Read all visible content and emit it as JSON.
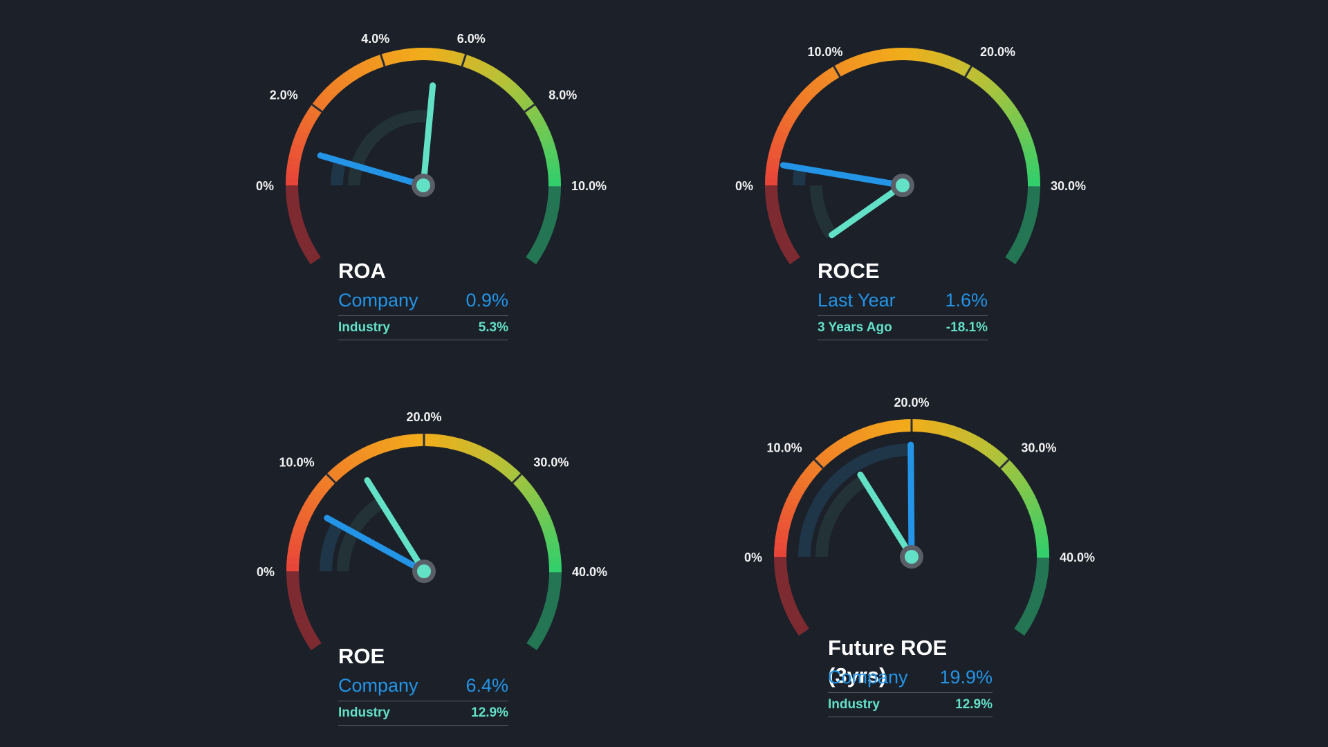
{
  "chart_data": [
    {
      "type": "gauge",
      "title": "ROA",
      "range": [
        0,
        10
      ],
      "ticks": [
        {
          "value": 0,
          "label": "0%"
        },
        {
          "value": 2,
          "label": "2.0%"
        },
        {
          "value": 4,
          "label": "4.0%"
        },
        {
          "value": 6,
          "label": "6.0%"
        },
        {
          "value": 8,
          "label": "8.0%"
        },
        {
          "value": 10,
          "label": "10.0%"
        }
      ],
      "series": [
        {
          "name": "Company",
          "value": 0.9,
          "display": "0.9%",
          "color": "#2394e6"
        },
        {
          "name": "Industry",
          "value": 5.3,
          "display": "5.3%",
          "color": "#63e1c6"
        }
      ]
    },
    {
      "type": "gauge",
      "title": "ROCE",
      "range": [
        0,
        30
      ],
      "ticks": [
        {
          "value": 0,
          "label": "0%"
        },
        {
          "value": 10,
          "label": "10.0%"
        },
        {
          "value": 20,
          "label": "20.0%"
        },
        {
          "value": 30,
          "label": "30.0%"
        }
      ],
      "series": [
        {
          "name": "Last Year",
          "value": 1.6,
          "display": "1.6%",
          "color": "#2394e6"
        },
        {
          "name": "3 Years Ago",
          "value": -18.1,
          "display": "-18.1%",
          "color": "#63e1c6"
        }
      ]
    },
    {
      "type": "gauge",
      "title": "ROE",
      "range": [
        0,
        40
      ],
      "ticks": [
        {
          "value": 0,
          "label": "0%"
        },
        {
          "value": 10,
          "label": "10.0%"
        },
        {
          "value": 20,
          "label": "20.0%"
        },
        {
          "value": 30,
          "label": "30.0%"
        },
        {
          "value": 40,
          "label": "40.0%"
        }
      ],
      "series": [
        {
          "name": "Company",
          "value": 6.4,
          "display": "6.4%",
          "color": "#2394e6"
        },
        {
          "name": "Industry",
          "value": 12.9,
          "display": "12.9%",
          "color": "#63e1c6"
        }
      ]
    },
    {
      "type": "gauge",
      "title": "Future ROE (3yrs)",
      "range": [
        0,
        40
      ],
      "ticks": [
        {
          "value": 0,
          "label": "0%"
        },
        {
          "value": 10,
          "label": "10.0%"
        },
        {
          "value": 20,
          "label": "20.0%"
        },
        {
          "value": 30,
          "label": "30.0%"
        },
        {
          "value": 40,
          "label": "40.0%"
        }
      ],
      "series": [
        {
          "name": "Company",
          "value": 19.9,
          "display": "19.9%",
          "color": "#2394e6"
        },
        {
          "name": "Industry",
          "value": 12.9,
          "display": "12.9%",
          "color": "#63e1c6"
        }
      ]
    }
  ]
}
